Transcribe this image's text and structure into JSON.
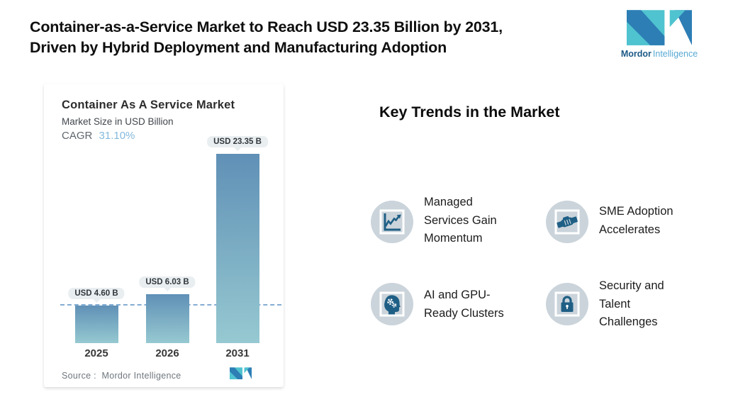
{
  "page": {
    "background": "#ffffff"
  },
  "header": {
    "title_line1": "Container-as-a-Service Market to Reach USD 23.35 Billion by 2031,",
    "title_line2": "Driven by Hybrid Deployment and Manufacturing Adoption",
    "logo": {
      "icon": "mordor-m-icon",
      "name_bold": "Mordor",
      "name_light": "Intelligence"
    }
  },
  "chart_card": {
    "title": "Container As A Service Market",
    "subtitle": "Market Size in USD Billion",
    "cagr_label": "CAGR",
    "cagr_value": "31.10%",
    "source_label": "Source :  Mordor Intelligence"
  },
  "chart_data": {
    "type": "bar",
    "title": "Container As A Service Market",
    "subtitle": "Market Size in USD Billion",
    "unit": "USD Billion",
    "cagr_percent": 31.1,
    "categories": [
      "2025",
      "2026",
      "2031"
    ],
    "values": [
      4.6,
      6.03,
      23.35
    ],
    "value_labels": [
      "USD 4.60 B",
      "USD 6.03 B",
      "USD 23.35 B"
    ],
    "dashed_reference_value": 4.6,
    "ylim": [
      0,
      23.35
    ],
    "gridlines": false,
    "legend": false,
    "bar_gradient_top": "#6090b6",
    "bar_gradient_bottom": "#96c9d1",
    "dashed_line_color": "#84add3",
    "source": "Mordor Intelligence"
  },
  "trends": {
    "heading": "Key Trends in the Market",
    "items": [
      {
        "icon": "line-chart-icon",
        "label": "Managed Services Gain Momentum",
        "lines": [
          "Managed",
          "Services Gain",
          "Momentum"
        ]
      },
      {
        "icon": "handshake-icon",
        "label": "SME Adoption Accelerates",
        "lines": [
          "SME Adoption",
          "Accelerates"
        ]
      },
      {
        "icon": "ai-head-icon",
        "label": "AI and GPU-Ready Clusters",
        "lines": [
          "AI and GPU-",
          "Ready Clusters"
        ]
      },
      {
        "icon": "lock-icon",
        "label": "Security and Talent Challenges",
        "lines": [
          "Security and",
          "Talent",
          "Challenges"
        ]
      }
    ]
  },
  "colors": {
    "accent_teal": "#4fc3cf",
    "accent_blue": "#2d7eb5",
    "icon_blue": "#1f5f85",
    "icon_circle_bg": "#cbd4db",
    "pill_bg": "#e9eef0",
    "cagr_value_color": "#84b9dd",
    "text_dark": "#0f0f0f",
    "text_gray": "#70777d"
  }
}
